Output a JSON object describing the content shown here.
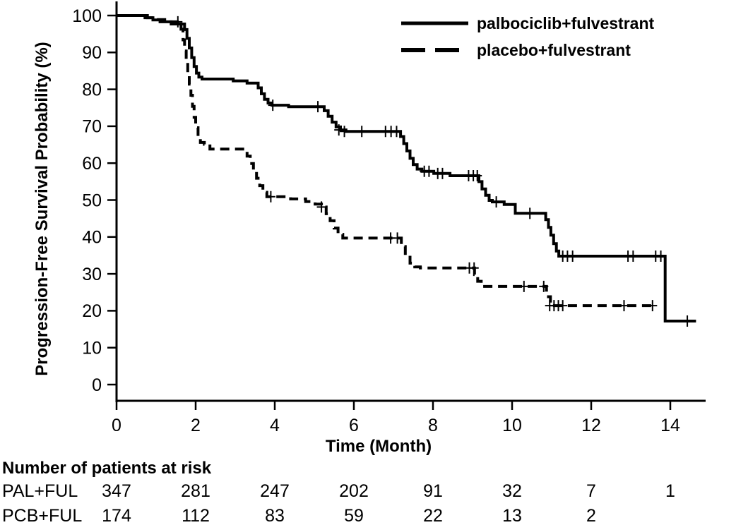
{
  "chart_data": {
    "type": "line",
    "subtype": "kaplan-meier-step",
    "title": "",
    "xlabel": "Time (Month)",
    "ylabel": "Progression-Free Survival Probability (%)",
    "xlim": [
      0,
      14.9
    ],
    "ylim": [
      0,
      100
    ],
    "x_ticks": [
      0,
      2,
      4,
      6,
      8,
      10,
      12,
      14
    ],
    "y_ticks": [
      0,
      10,
      20,
      30,
      40,
      50,
      60,
      70,
      80,
      90,
      100
    ],
    "grid": false,
    "legend_position": "top-right",
    "colors": {
      "foreground": "#000000",
      "background": "#ffffff"
    },
    "series": [
      {
        "name": "palbociclib+fulvestrant",
        "line_style": "solid",
        "color": "#000000",
        "points": [
          [
            0,
            100
          ],
          [
            0.72,
            99.4
          ],
          [
            0.92,
            98.8
          ],
          [
            1.1,
            98.3
          ],
          [
            1.38,
            97.7
          ],
          [
            1.72,
            96.2
          ],
          [
            1.78,
            93.8
          ],
          [
            1.84,
            91.2
          ],
          [
            1.9,
            88.6
          ],
          [
            1.96,
            86.2
          ],
          [
            2.02,
            84.4
          ],
          [
            2.08,
            83.3
          ],
          [
            2.16,
            82.8
          ],
          [
            2.95,
            82.3
          ],
          [
            3.3,
            81.7
          ],
          [
            3.58,
            80.4
          ],
          [
            3.66,
            78.8
          ],
          [
            3.74,
            77.3
          ],
          [
            3.83,
            76.3
          ],
          [
            3.93,
            75.7
          ],
          [
            4.35,
            75.3
          ],
          [
            5.25,
            74.2
          ],
          [
            5.35,
            72.7
          ],
          [
            5.45,
            71.1
          ],
          [
            5.55,
            69.8
          ],
          [
            5.66,
            69.0
          ],
          [
            5.8,
            68.6
          ],
          [
            7.18,
            67.2
          ],
          [
            7.26,
            65.3
          ],
          [
            7.34,
            63.3
          ],
          [
            7.42,
            61.3
          ],
          [
            7.5,
            59.6
          ],
          [
            7.6,
            58.4
          ],
          [
            7.72,
            57.8
          ],
          [
            8.02,
            57.2
          ],
          [
            8.43,
            56.6
          ],
          [
            9.16,
            55.0
          ],
          [
            9.24,
            53.0
          ],
          [
            9.33,
            51.3
          ],
          [
            9.42,
            49.9
          ],
          [
            9.5,
            49.5
          ],
          [
            9.8,
            48.8
          ],
          [
            10.08,
            46.4
          ],
          [
            10.85,
            44.7
          ],
          [
            10.92,
            42.6
          ],
          [
            10.98,
            40.5
          ],
          [
            11.05,
            38.2
          ],
          [
            11.12,
            36.2
          ],
          [
            11.18,
            34.8
          ],
          [
            13.87,
            17.2
          ]
        ],
        "end_month": 14.65,
        "censored": [
          [
            1.55,
            98.3
          ],
          [
            3.95,
            75.7
          ],
          [
            5.09,
            75.3
          ],
          [
            5.62,
            69.0
          ],
          [
            5.76,
            68.6
          ],
          [
            6.2,
            68.6
          ],
          [
            6.8,
            68.6
          ],
          [
            6.94,
            68.6
          ],
          [
            7.08,
            68.6
          ],
          [
            7.78,
            57.8
          ],
          [
            7.9,
            57.8
          ],
          [
            8.12,
            57.2
          ],
          [
            8.24,
            57.2
          ],
          [
            8.9,
            56.6
          ],
          [
            9.02,
            56.6
          ],
          [
            9.12,
            56.6
          ],
          [
            9.6,
            49.5
          ],
          [
            10.45,
            46.4
          ],
          [
            11.28,
            34.8
          ],
          [
            11.4,
            34.8
          ],
          [
            11.53,
            34.8
          ],
          [
            12.93,
            34.8
          ],
          [
            13.06,
            34.8
          ],
          [
            13.63,
            34.8
          ],
          [
            13.76,
            34.8
          ],
          [
            14.43,
            17.2
          ]
        ]
      },
      {
        "name": "placebo+fulvestrant",
        "line_style": "dashed",
        "color": "#000000",
        "points": [
          [
            0,
            100
          ],
          [
            0.78,
            99.4
          ],
          [
            1.0,
            98.9
          ],
          [
            1.26,
            98.3
          ],
          [
            1.63,
            96.3
          ],
          [
            1.68,
            93.4
          ],
          [
            1.72,
            90.4
          ],
          [
            1.76,
            87.4
          ],
          [
            1.8,
            84.4
          ],
          [
            1.84,
            81.4
          ],
          [
            1.88,
            78.4
          ],
          [
            1.92,
            75.4
          ],
          [
            1.96,
            72.4
          ],
          [
            2.0,
            69.6
          ],
          [
            2.06,
            67.2
          ],
          [
            2.12,
            65.6
          ],
          [
            2.22,
            65.1
          ],
          [
            2.36,
            63.8
          ],
          [
            3.3,
            61.9
          ],
          [
            3.38,
            59.9
          ],
          [
            3.46,
            57.9
          ],
          [
            3.54,
            55.9
          ],
          [
            3.62,
            53.9
          ],
          [
            3.7,
            52.1
          ],
          [
            3.8,
            50.9
          ],
          [
            4.4,
            50.3
          ],
          [
            4.78,
            49.6
          ],
          [
            5.02,
            48.9
          ],
          [
            5.18,
            48.1
          ],
          [
            5.3,
            46.3
          ],
          [
            5.4,
            44.4
          ],
          [
            5.5,
            42.4
          ],
          [
            5.6,
            40.7
          ],
          [
            5.72,
            39.7
          ],
          [
            7.2,
            37.4
          ],
          [
            7.3,
            34.9
          ],
          [
            7.42,
            32.9
          ],
          [
            7.54,
            31.9
          ],
          [
            7.68,
            31.6
          ],
          [
            9.05,
            29.8
          ],
          [
            9.13,
            28.0
          ],
          [
            9.22,
            26.6
          ],
          [
            10.87,
            23.8
          ],
          [
            10.97,
            21.4
          ]
        ],
        "end_month": 13.65,
        "censored": [
          [
            3.9,
            50.9
          ],
          [
            5.18,
            48.1
          ],
          [
            6.93,
            39.7
          ],
          [
            7.1,
            39.7
          ],
          [
            8.92,
            31.6
          ],
          [
            9.04,
            31.6
          ],
          [
            10.3,
            26.6
          ],
          [
            10.8,
            26.6
          ],
          [
            10.95,
            21.4
          ],
          [
            11.06,
            21.4
          ],
          [
            11.17,
            21.4
          ],
          [
            11.28,
            21.4
          ],
          [
            12.83,
            21.4
          ],
          [
            13.55,
            21.4
          ]
        ]
      }
    ]
  },
  "risk_table": {
    "title": "Number of patients at risk",
    "months": [
      0,
      2,
      4,
      6,
      8,
      10,
      12,
      14
    ],
    "rows": [
      {
        "label": "PAL+FUL",
        "counts": [
          "347",
          "281",
          "247",
          "202",
          "91",
          "32",
          "7",
          "1"
        ]
      },
      {
        "label": "PCB+FUL",
        "counts": [
          "174",
          "112",
          "83",
          "59",
          "22",
          "13",
          "2",
          ""
        ]
      }
    ]
  }
}
